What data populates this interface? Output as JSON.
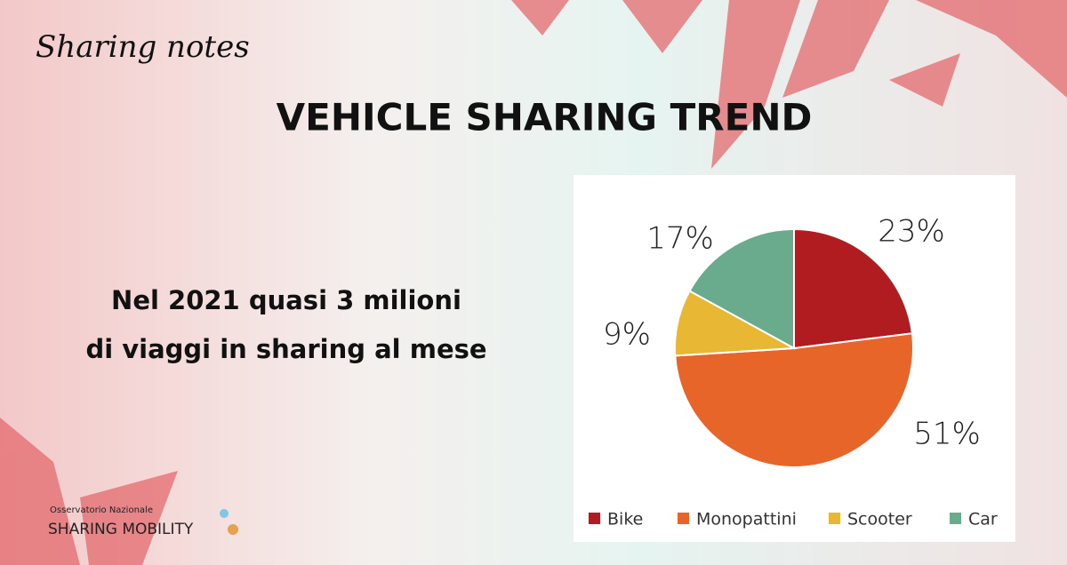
{
  "brand": "Sharing notes",
  "title": "VEHICLE SHARING TREND",
  "subtitle_lines": [
    "Nel 2021 quasi 3 milioni",
    "di viaggi in sharing al mese"
  ],
  "logo": {
    "line1": "Osservatorio Nazionale",
    "line2": "SHARING MOBILITY"
  },
  "chart_data": {
    "type": "pie",
    "categories": [
      "Bike",
      "Monopattini",
      "Scooter",
      "Car"
    ],
    "values": [
      23,
      51,
      9,
      17
    ],
    "value_labels": [
      "23%",
      "51%",
      "9%",
      "17%"
    ],
    "colors": [
      "#b01c20",
      "#e8652a",
      "#e8b733",
      "#6aab8e"
    ],
    "legend": "bottom"
  }
}
